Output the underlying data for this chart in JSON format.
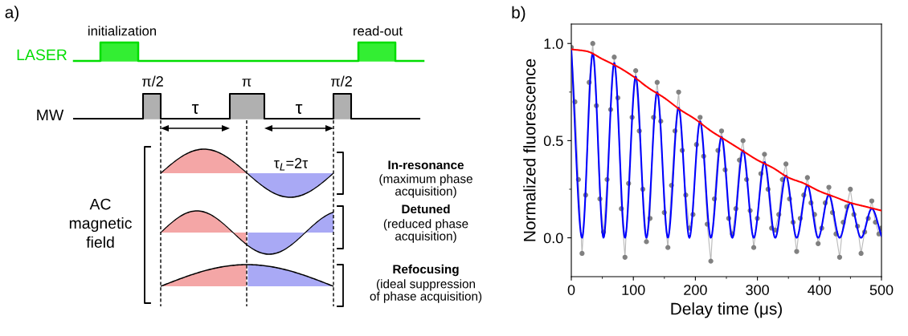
{
  "chart_data": [
    {
      "type": "other",
      "title": "a)",
      "annotations": [
        "initialization",
        "read-out",
        "LASER",
        "π/2",
        "π",
        "π/2",
        "MW",
        "τ",
        "τ",
        "τ$_{L}$=2τ",
        "AC\nmagnetic\nfield",
        "In-resonance",
        "(maximum phase\nacquisition)",
        "Detuned",
        "(reduced phase\nacquisition)",
        "Refocusing",
        "(ideal suppression\nof phase acquisition)"
      ]
    },
    {
      "type": "line",
      "title": "b)",
      "xlabel": "Delay time (μs)",
      "ylabel": "Normalized fluorescence",
      "xlim": [
        0,
        500
      ],
      "xticks": [
        0,
        100,
        200,
        300,
        400,
        500
      ],
      "ylim": [
        -0.2,
        1.1
      ],
      "yticks": [
        {
          "value": 0,
          "label": "0.0"
        },
        {
          "value": 0.5,
          "label": "0.5"
        },
        {
          "value": 1,
          "label": "1.0"
        }
      ],
      "grid": false,
      "series": [
        {
          "type": "line",
          "marker": "circle",
          "color": "#808080",
          "x": [
            0,
            5.8,
            11.5,
            17.3,
            23.1,
            28.8,
            34.6,
            40.4,
            46.1,
            51.9,
            57.7,
            63.4,
            69.2,
            75.0,
            80.7,
            86.5,
            92.3,
            98.0,
            103.8,
            109.6,
            115.3,
            121.1,
            126.9,
            132.6,
            138.4,
            144.2,
            149.9,
            155.7,
            161.5,
            167.2,
            173,
            178.8,
            184.5,
            190.3,
            196.1,
            201.8,
            207.6,
            213.4,
            219.1,
            224.9,
            230.7,
            236.4,
            242.2,
            248.0,
            253.7,
            259.5,
            265.3,
            271.0,
            276.8,
            282.6,
            288.3,
            294.1,
            299.9,
            305.6,
            311.4,
            317.2,
            322.9,
            328.7,
            334.5,
            340.2,
            346,
            351.8,
            357.5,
            363.3,
            369.1,
            374.8,
            380.6,
            386.4,
            392.1,
            397.9,
            403.7,
            409.4,
            415.2,
            421.0,
            426.7,
            432.5,
            438.3,
            444.0,
            449.8,
            455.6,
            461.3,
            467.1,
            472.9,
            478.6,
            484.4,
            490.2,
            495.9,
            500
          ],
          "values": [
            0.98,
            0.7,
            0.3,
            -0.08,
            0.22,
            0.8,
            1.0,
            0.68,
            0.2,
            0.03,
            0.3,
            0.66,
            0.93,
            0.72,
            0.15,
            -0.1,
            0.28,
            0.62,
            0.86,
            0.55,
            0.25,
            -0.02,
            0.1,
            0.62,
            0.8,
            0.6,
            0.13,
            -0.05,
            0.27,
            0.55,
            0.75,
            0.45,
            0.22,
            0.05,
            0.12,
            0.48,
            0.62,
            0.42,
            0.07,
            -0.12,
            0.2,
            0.45,
            0.55,
            0.35,
            0.1,
            0.02,
            0.15,
            0.4,
            0.5,
            0.3,
            0.14,
            -0.05,
            0.1,
            0.33,
            0.43,
            0.25,
            0.05,
            0.04,
            0.12,
            0.3,
            0.38,
            0.2,
            0.08,
            -0.07,
            0.1,
            0.22,
            0.31,
            0.18,
            0.12,
            -0.03,
            0.05,
            0.18,
            0.26,
            0.13,
            0.02,
            -0.1,
            0.08,
            0.16,
            0.25,
            0.12,
            0.06,
            -0.08,
            0.03,
            0.1,
            0.19,
            0.08,
            0.02,
            0.05
          ]
        },
        {
          "type": "line",
          "marker": "none",
          "color": "#0000ff",
          "x": [
            0,
            17.3,
            34.6,
            51.9,
            69.2,
            86.5,
            103.8,
            121.1,
            138.4,
            155.7,
            173,
            190.3,
            207.6,
            224.9,
            242.2,
            259.5,
            276.8,
            294.1,
            311.4,
            328.7,
            346,
            363.3,
            380.6,
            397.9,
            415.2,
            432.5,
            449.8,
            467.1,
            484.4,
            500
          ],
          "values": [
            0.97,
            0.0,
            0.95,
            0.0,
            0.9,
            0.0,
            0.83,
            0.0,
            0.75,
            0.0,
            0.67,
            0.0,
            0.6,
            0.0,
            0.52,
            0.0,
            0.45,
            0.0,
            0.39,
            0.0,
            0.32,
            0.0,
            0.27,
            0.0,
            0.22,
            0.0,
            0.18,
            0.0,
            0.15,
            0.01
          ]
        },
        {
          "type": "line",
          "marker": "none",
          "color": "#ff0000",
          "x": [
            0,
            25,
            50,
            75,
            100,
            125,
            150,
            175,
            200,
            225,
            250,
            275,
            300,
            325,
            350,
            375,
            400,
            425,
            450,
            475,
            500
          ],
          "values": [
            0.97,
            0.96,
            0.92,
            0.88,
            0.83,
            0.77,
            0.72,
            0.66,
            0.61,
            0.55,
            0.5,
            0.45,
            0.4,
            0.36,
            0.31,
            0.28,
            0.24,
            0.21,
            0.18,
            0.16,
            0.14
          ]
        }
      ]
    }
  ]
}
